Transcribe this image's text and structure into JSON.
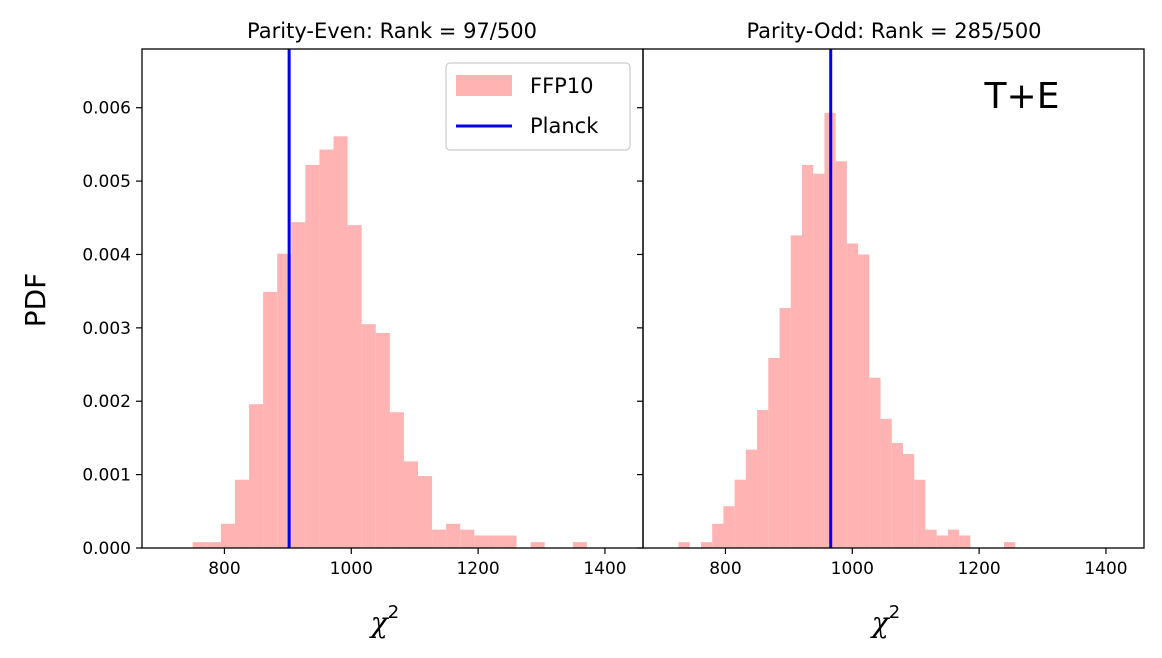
{
  "chart_data": [
    {
      "type": "bar",
      "panel": "left",
      "title": "Parity-Even:  Rank = 97/500",
      "xlabel": "χ",
      "xlabel_sup": "2",
      "ylabel": "PDF",
      "xlim": [
        670,
        1460
      ],
      "ylim": [
        0,
        0.0068
      ],
      "xticks": [
        800,
        1000,
        1200,
        1400
      ],
      "yticks": [
        0.0,
        0.001,
        0.002,
        0.003,
        0.004,
        0.005,
        0.006
      ],
      "ytick_labels": [
        "0.000",
        "0.001",
        "0.002",
        "0.003",
        "0.004",
        "0.005",
        "0.006"
      ],
      "hist": {
        "name": "FFP10",
        "bin_width": 22.2,
        "bins": [
          {
            "x0": 750,
            "v": 8e-05
          },
          {
            "x0": 772.2,
            "v": 8e-05
          },
          {
            "x0": 794.4,
            "v": 0.00033
          },
          {
            "x0": 816.6,
            "v": 0.00093
          },
          {
            "x0": 838.8,
            "v": 0.00196
          },
          {
            "x0": 861.0,
            "v": 0.00349
          },
          {
            "x0": 883.2,
            "v": 0.00401
          },
          {
            "x0": 905.4,
            "v": 0.00444
          },
          {
            "x0": 927.6,
            "v": 0.00522
          },
          {
            "x0": 949.8,
            "v": 0.00543
          },
          {
            "x0": 972.0,
            "v": 0.00561
          },
          {
            "x0": 994.2,
            "v": 0.0044
          },
          {
            "x0": 1016.4,
            "v": 0.00305
          },
          {
            "x0": 1038.6,
            "v": 0.00293
          },
          {
            "x0": 1060.8,
            "v": 0.00185
          },
          {
            "x0": 1083.0,
            "v": 0.00118
          },
          {
            "x0": 1105.2,
            "v": 0.00098
          },
          {
            "x0": 1127.4,
            "v": 0.00025
          },
          {
            "x0": 1149.6,
            "v": 0.00033
          },
          {
            "x0": 1171.8,
            "v": 0.00025
          },
          {
            "x0": 1194.0,
            "v": 0.00017
          },
          {
            "x0": 1216.2,
            "v": 0.00017
          },
          {
            "x0": 1238.4,
            "v": 0.00017
          },
          {
            "x0": 1282.8,
            "v": 8e-05
          },
          {
            "x0": 1349.4,
            "v": 8e-05
          }
        ]
      },
      "vline": {
        "name": "Planck",
        "x": 902
      },
      "legend": {
        "position": "upper right",
        "entries": [
          "FFP10",
          "Planck"
        ]
      }
    },
    {
      "type": "bar",
      "panel": "right",
      "title": "Parity-Odd:  Rank = 285/500",
      "xlabel": "χ",
      "xlabel_sup": "2",
      "xlim": [
        670,
        1460
      ],
      "ylim": [
        0,
        0.0068
      ],
      "xticks": [
        800,
        1000,
        1200,
        1400
      ],
      "annotation": "T+E",
      "hist": {
        "name": "FFP10",
        "bin_width": 17.7,
        "bins": [
          {
            "x0": 726.0,
            "v": 8e-05
          },
          {
            "x0": 761.4,
            "v": 8e-05
          },
          {
            "x0": 779.1,
            "v": 0.00033
          },
          {
            "x0": 796.8,
            "v": 0.00057
          },
          {
            "x0": 814.5,
            "v": 0.00093
          },
          {
            "x0": 832.2,
            "v": 0.00134
          },
          {
            "x0": 849.9,
            "v": 0.00188
          },
          {
            "x0": 867.6,
            "v": 0.00259
          },
          {
            "x0": 885.3,
            "v": 0.00327
          },
          {
            "x0": 903.0,
            "v": 0.00426
          },
          {
            "x0": 920.7,
            "v": 0.00522
          },
          {
            "x0": 938.4,
            "v": 0.0051
          },
          {
            "x0": 956.1,
            "v": 0.00593
          },
          {
            "x0": 973.8,
            "v": 0.00527
          },
          {
            "x0": 991.5,
            "v": 0.00415
          },
          {
            "x0": 1009.2,
            "v": 0.004
          },
          {
            "x0": 1026.9,
            "v": 0.00232
          },
          {
            "x0": 1044.6,
            "v": 0.00176
          },
          {
            "x0": 1062.3,
            "v": 0.00143
          },
          {
            "x0": 1080.0,
            "v": 0.00128
          },
          {
            "x0": 1097.7,
            "v": 0.00093
          },
          {
            "x0": 1115.4,
            "v": 0.00025
          },
          {
            "x0": 1133.1,
            "v": 0.00017
          },
          {
            "x0": 1150.8,
            "v": 0.00025
          },
          {
            "x0": 1168.5,
            "v": 0.00017
          },
          {
            "x0": 1239.3,
            "v": 8e-05
          }
        ]
      },
      "vline": {
        "name": "Planck",
        "x": 966
      }
    }
  ],
  "colors": {
    "hist_fill": "#ffb3b3",
    "vline": "#0000ee",
    "annotation": "#008000"
  }
}
